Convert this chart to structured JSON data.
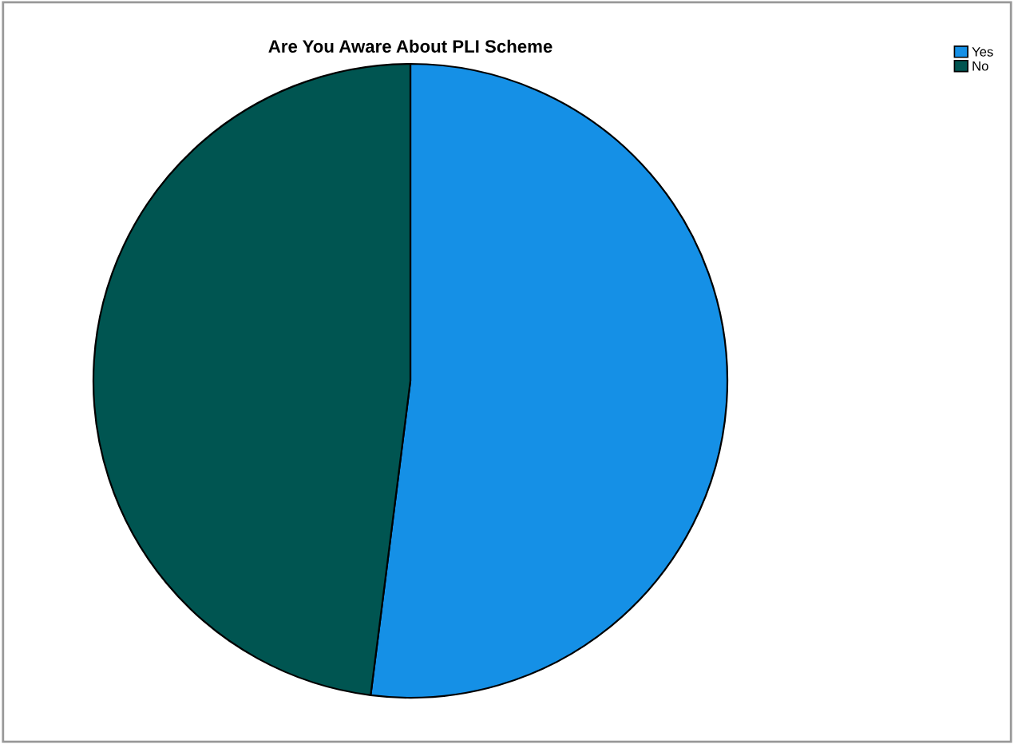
{
  "chart_data": {
    "type": "pie",
    "title": "Are You Aware About PLI Scheme",
    "categories": [
      "Yes",
      "No"
    ],
    "values": [
      52,
      48
    ],
    "colors": [
      "#1590e6",
      "#005551"
    ],
    "legend": "top right"
  }
}
